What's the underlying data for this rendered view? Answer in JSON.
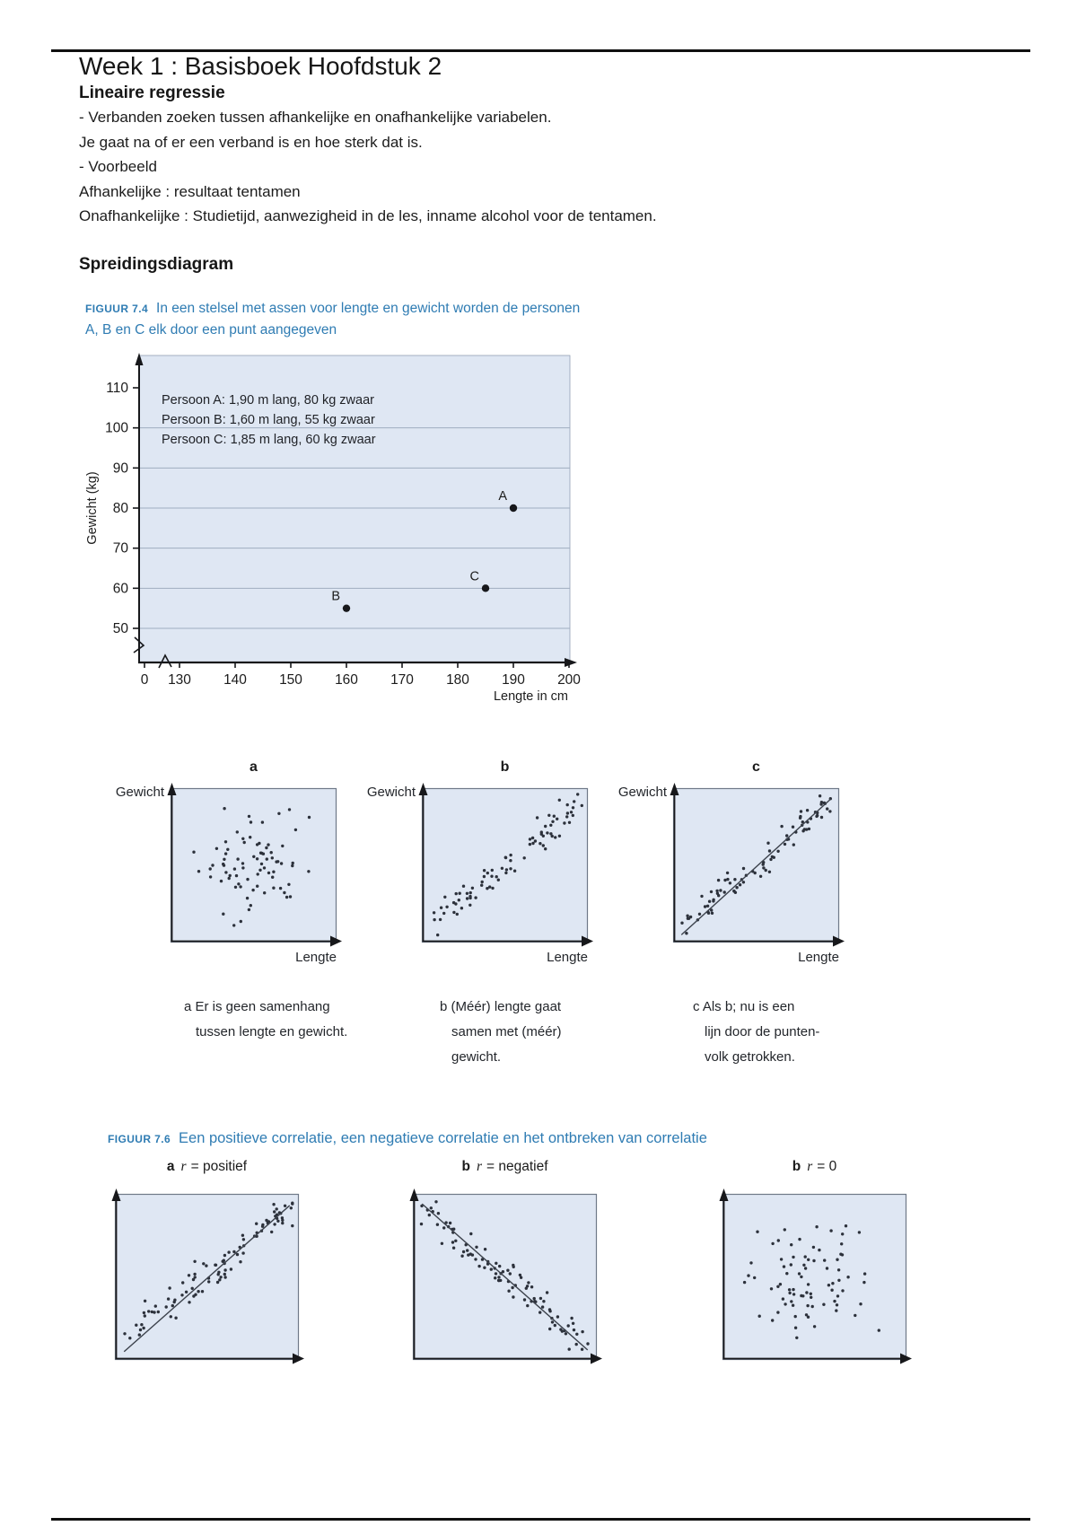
{
  "document": {
    "title": "Week 1 : Basisboek Hoofdstuk 2",
    "section_regression_heading": "Lineaire regressie",
    "body_lines": [
      "- Verbanden zoeken tussen afhankelijke en onafhankelijke variabelen.",
      "Je gaat na of er een verband is en hoe sterk dat is.",
      "- Voorbeeld",
      "Afhankelijke : resultaat tentamen",
      "Onafhankelijke : Studietijd, aanwezigheid in de les, inname alcohol voor de tentamen."
    ],
    "section_scatter_heading": "Spreidingsdiagram"
  },
  "figure_7_4": {
    "tag": "FIGUUR 7.4",
    "caption_line1": "In een stelsel met assen voor lengte en gewicht worden de personen",
    "caption_line2": "A, B en C elk door een punt aangegeven"
  },
  "figure_7_6": {
    "tag": "FIGUUR 7.6",
    "caption": "Een positieve correlatie, een negatieve correlatie en het ontbreken van correlatie"
  },
  "colors": {
    "figure_caption_blue": "#2f7cb3",
    "plot_background": "#dfe7f3",
    "gridline": "#9fadc0",
    "axis_ink": "#17181b"
  },
  "chart_data": [
    {
      "id": "persons-length-weight-scatter",
      "type": "scatter",
      "xlabel": "Lengte in cm",
      "ylabel": "Gewicht (kg)",
      "x_ticks": [
        0,
        130,
        140,
        150,
        160,
        170,
        180,
        190,
        200
      ],
      "y_ticks": [
        50,
        60,
        70,
        80,
        90,
        100,
        110
      ],
      "xlim": [
        120,
        200
      ],
      "ylim": [
        45,
        110
      ],
      "grid": true,
      "axis_breaks": true,
      "legend_position": "top-left inside",
      "legend_lines": [
        "Persoon A:  1,90 m lang, 80 kg zwaar",
        "Persoon B:  1,60 m lang, 55 kg zwaar",
        "Persoon C:  1,85 m lang, 60 kg zwaar"
      ],
      "points": [
        {
          "label": "A",
          "x": 190,
          "y": 80
        },
        {
          "label": "B",
          "x": 160,
          "y": 55
        },
        {
          "label": "C",
          "x": 185,
          "y": 60
        }
      ]
    },
    {
      "id": "scatter-panel-a",
      "type": "scatter",
      "panel_letter": "a",
      "xlabel": "Lengte",
      "ylabel": "Gewicht",
      "pattern": "random-cloud",
      "n_points": 78,
      "seed": 11,
      "trend_line": false,
      "caption_lines": [
        "a Er is geen samenhang",
        "tussen lengte en gewicht."
      ]
    },
    {
      "id": "scatter-panel-b",
      "type": "scatter",
      "panel_letter": "b",
      "xlabel": "Lengte",
      "ylabel": "Gewicht",
      "pattern": "positive",
      "n_points": 82,
      "seed": 23,
      "trend_line": false,
      "caption_lines": [
        "b (Méér) lengte gaat",
        "samen met (méér)",
        "gewicht."
      ]
    },
    {
      "id": "scatter-panel-c",
      "type": "scatter",
      "panel_letter": "c",
      "xlabel": "Lengte",
      "ylabel": "Gewicht",
      "pattern": "positive",
      "n_points": 86,
      "seed": 37,
      "trend_line": true,
      "caption_lines": [
        "c Als b; nu is een",
        "lijn door de punten-",
        "volk getrokken."
      ]
    },
    {
      "id": "correlation-positive",
      "type": "scatter",
      "label_letter": "a",
      "label_var": "r",
      "label_value": "= positief",
      "pattern": "positive",
      "n_points": 95,
      "seed": 51,
      "trend_line": true
    },
    {
      "id": "correlation-negative",
      "type": "scatter",
      "label_letter": "b",
      "label_var": "r",
      "label_value": "= negatief",
      "pattern": "negative",
      "n_points": 95,
      "seed": 67,
      "trend_line": true
    },
    {
      "id": "correlation-zero",
      "type": "scatter",
      "label_letter": "b",
      "label_var": "r",
      "label_value": "= 0",
      "pattern": "random-cloud",
      "n_points": 80,
      "seed": 83,
      "trend_line": false
    }
  ]
}
